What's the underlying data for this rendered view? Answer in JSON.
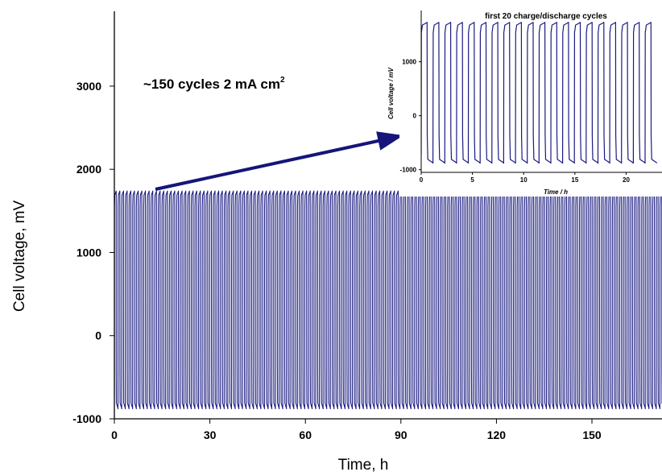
{
  "chart_data": [
    {
      "id": "main",
      "type": "line",
      "title": "",
      "xlabel": "Time, h",
      "ylabel": "Cell voltage, mV",
      "xlim": [
        0,
        172
      ],
      "ylim": [
        -1000,
        3900
      ],
      "xticks": [
        0,
        30,
        60,
        90,
        120,
        150
      ],
      "yticks": [
        -1000,
        0,
        1000,
        2000,
        3000
      ],
      "color": "#1a1a80",
      "grid": false,
      "annotation": {
        "text": "~150 cycles 2 mA cm",
        "superscript": "2"
      },
      "series": [
        {
          "pattern": "galvanostatic charge/discharge cycling",
          "cycles": 150,
          "cycle_period_h": 1.15,
          "charge_plateau_mV": 1730,
          "discharge_plateau_mV": -870,
          "x_range": [
            0,
            172
          ]
        }
      ]
    },
    {
      "id": "inset",
      "type": "line",
      "title": "first 20 charge/discharge cycles",
      "xlabel": "Time / h",
      "ylabel": "Cell voltage / mV",
      "xlim": [
        0,
        23.5
      ],
      "ylim": [
        -1050,
        1950
      ],
      "xticks": [
        0,
        5,
        10,
        15,
        20
      ],
      "yticks": [
        -1000,
        0,
        1000
      ],
      "color": "#1a1a80",
      "series": [
        {
          "pattern": "galvanostatic charge/discharge cycling",
          "cycles": 20,
          "cycle_period_h": 1.15,
          "charge_plateau_mV": 1720,
          "discharge_plateau_mV": -870,
          "x_range": [
            0,
            23.5
          ]
        }
      ]
    }
  ]
}
